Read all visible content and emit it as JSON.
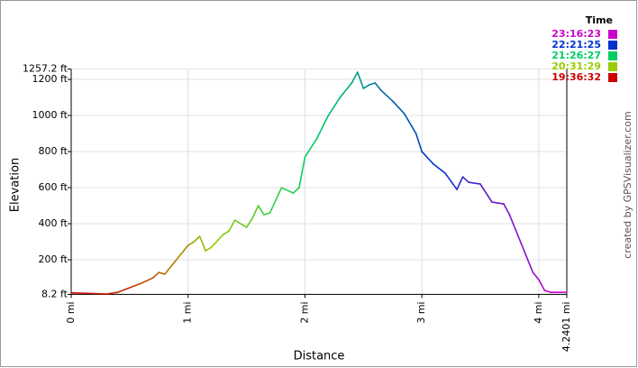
{
  "chart_data": {
    "type": "line",
    "x_label": "Distance",
    "y_label": "Elevation",
    "credit": "created by GPSVisualizer.com",
    "legend": {
      "title": "Time",
      "items": [
        {
          "label": "23:16:23",
          "color": "#cc00cc"
        },
        {
          "label": "22:21:25",
          "color": "#0033cc"
        },
        {
          "label": "21:26:27",
          "color": "#00cc66"
        },
        {
          "label": "20:31:29",
          "color": "#99cc00"
        },
        {
          "label": "19:36:32",
          "color": "#cc0000"
        }
      ]
    },
    "xlim": [
      0,
      4.2401
    ],
    "ylim": [
      8.2,
      1257.2
    ],
    "grid": true,
    "xticks": [
      {
        "value": 0,
        "label": "0 mi"
      },
      {
        "value": 1,
        "label": "1 mi"
      },
      {
        "value": 2,
        "label": "2 mi"
      },
      {
        "value": 3,
        "label": "3 mi"
      },
      {
        "value": 4,
        "label": "4 mi"
      },
      {
        "value": 4.2401,
        "label": "4.2401 mi"
      }
    ],
    "yticks": [
      {
        "value": 8.2,
        "label": "8.2 ft"
      },
      {
        "value": 200,
        "label": "200 ft"
      },
      {
        "value": 400,
        "label": "400 ft"
      },
      {
        "value": 600,
        "label": "600 ft"
      },
      {
        "value": 800,
        "label": "800 ft"
      },
      {
        "value": 1000,
        "label": "1000 ft"
      },
      {
        "value": 1200,
        "label": "1200 ft"
      },
      {
        "value": 1257.2,
        "label": "1257.2 ft"
      }
    ],
    "x": [
      0,
      0.15,
      0.3,
      0.4,
      0.5,
      0.6,
      0.7,
      0.75,
      0.8,
      0.9,
      1.0,
      1.05,
      1.1,
      1.15,
      1.2,
      1.3,
      1.35,
      1.4,
      1.5,
      1.55,
      1.6,
      1.65,
      1.7,
      1.8,
      1.9,
      1.95,
      2.0,
      2.1,
      2.2,
      2.3,
      2.4,
      2.45,
      2.5,
      2.55,
      2.6,
      2.65,
      2.75,
      2.85,
      2.95,
      3.0,
      3.1,
      3.2,
      3.3,
      3.35,
      3.4,
      3.5,
      3.6,
      3.7,
      3.75,
      3.85,
      3.95,
      4.0,
      4.05,
      4.1,
      4.2401
    ],
    "values": [
      17,
      14,
      10,
      20,
      45,
      70,
      100,
      130,
      120,
      200,
      280,
      300,
      330,
      250,
      270,
      340,
      360,
      420,
      380,
      430,
      500,
      450,
      460,
      600,
      570,
      600,
      770,
      870,
      1000,
      1100,
      1180,
      1240,
      1150,
      1170,
      1180,
      1140,
      1080,
      1010,
      900,
      800,
      730,
      680,
      590,
      660,
      630,
      620,
      520,
      510,
      450,
      290,
      130,
      90,
      30,
      20,
      20
    ]
  }
}
